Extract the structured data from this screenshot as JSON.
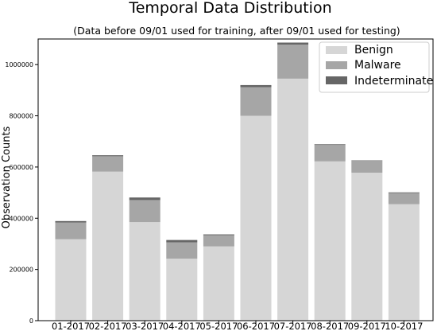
{
  "chart_data": {
    "type": "bar",
    "stacked": true,
    "title": "Temporal Data Distribution",
    "subtitle": "(Data before 09/01 used for training, after 09/01 used for testing)",
    "xlabel": "",
    "ylabel": "Observation Counts",
    "ylim": [
      0,
      1100000
    ],
    "yticks": [
      0,
      200000,
      400000,
      600000,
      800000,
      1000000
    ],
    "ytick_labels": [
      "0",
      "200000",
      "400000",
      "600000",
      "800000",
      "1000000"
    ],
    "grid": false,
    "legend_position": "top-right",
    "categories": [
      "01-2017",
      "02-2017",
      "03-2017",
      "04-2017",
      "05-2017",
      "06-2017",
      "07-2017",
      "08-2017",
      "09-2017",
      "10-2017"
    ],
    "series": [
      {
        "name": "Benign",
        "color": "#d6d6d6",
        "values": [
          318000,
          582000,
          385000,
          242000,
          290000,
          800000,
          945000,
          622000,
          578000,
          455000
        ]
      },
      {
        "name": "Malware",
        "color": "#a6a6a6",
        "values": [
          65000,
          60000,
          86000,
          64000,
          44000,
          112000,
          133000,
          64000,
          46000,
          43000
        ]
      },
      {
        "name": "Indeterminate",
        "color": "#666666",
        "values": [
          6000,
          4000,
          10000,
          9000,
          3000,
          8000,
          8000,
          3000,
          2000,
          3000
        ]
      }
    ]
  }
}
